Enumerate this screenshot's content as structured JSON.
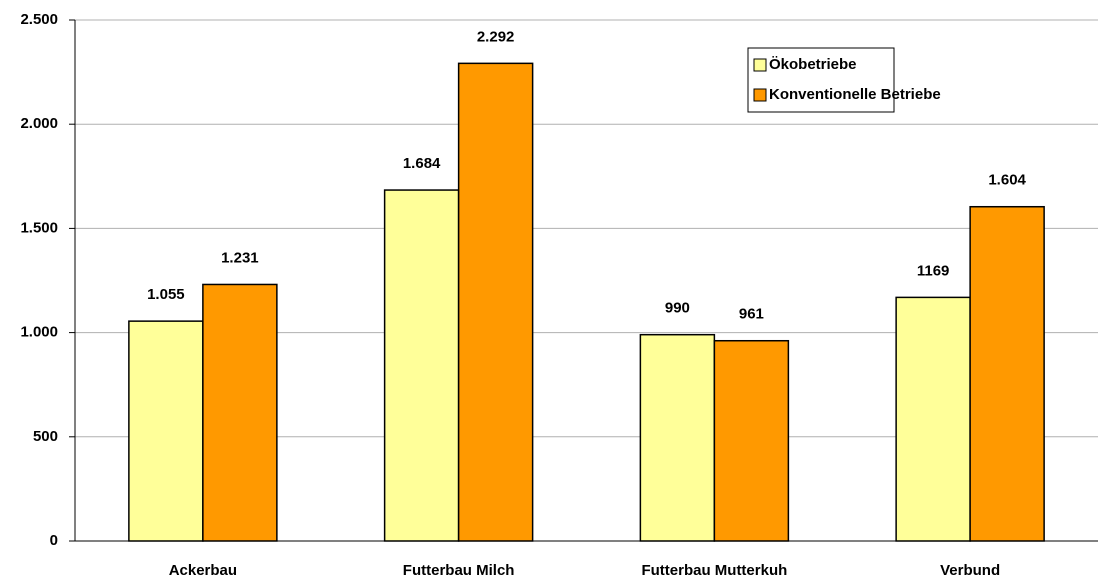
{
  "chart_data": {
    "type": "bar",
    "categories": [
      "Ackerbau",
      "Futterbau Milch",
      "Futterbau Mutterkuh",
      "Verbund"
    ],
    "series": [
      {
        "name": "Ökobetriebe",
        "color": "#ffff99",
        "values": [
          1055,
          1684,
          990,
          1169
        ],
        "value_labels": [
          "1.055",
          "1.684",
          "990",
          "1169"
        ]
      },
      {
        "name": "Konventionelle Betriebe",
        "color": "#ff9900",
        "values": [
          1231,
          2292,
          961,
          1604
        ],
        "value_labels": [
          "1.231",
          "2.292",
          "961",
          "1.604"
        ]
      }
    ],
    "ylim": [
      0,
      2500
    ],
    "yticks": [
      0,
      500,
      {
        "value": 1000,
        "label": "1.000"
      },
      {
        "value": 1500,
        "label": "1.500"
      },
      {
        "value": 2000,
        "label": "2.000"
      },
      {
        "value": 2500,
        "label": "2.500"
      }
    ],
    "grid": true,
    "legend": "top-right"
  }
}
